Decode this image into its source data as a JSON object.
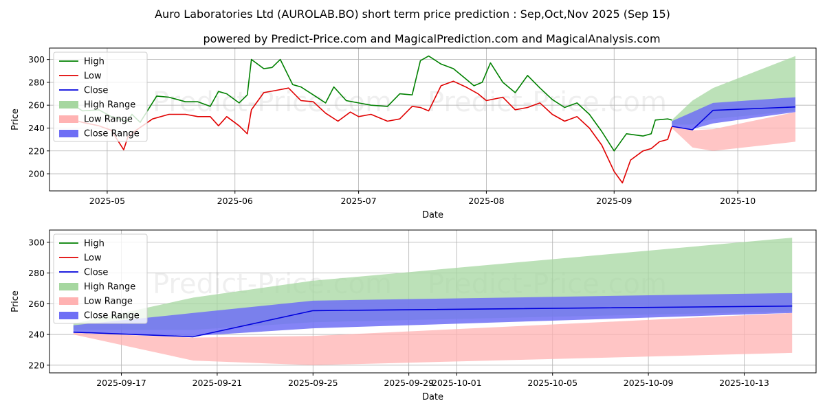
{
  "title_line1": "Auro Laboratories Ltd (AUROLAB.BO) short term price prediction : Sep,Oct,Nov 2025 (Sep 15)",
  "title_line2": "powered by Predict-Price.com and MagicalPrediction.com and MagicalAnalysis.com",
  "watermark": "Predict-Price.com",
  "colors": {
    "high": "#008000",
    "low": "#e00000",
    "close": "#0000dd",
    "high_range": "#a6d7a0",
    "low_range": "#ffb2b2",
    "close_range": "#6f6ff5"
  },
  "chart_data": [
    {
      "type": "line",
      "xlabel": "Date",
      "ylabel": "Price",
      "ylim": [
        185,
        310
      ],
      "yticks": [
        200,
        220,
        240,
        260,
        280,
        300
      ],
      "xticks": [
        "2025-05-01",
        "2025-06-01",
        "2025-07-01",
        "2025-08-01",
        "2025-09-01",
        "2025-10-01"
      ],
      "xtick_labels": [
        "2025-05",
        "2025-06",
        "2025-07",
        "2025-08",
        "2025-09",
        "2025-10"
      ],
      "xlim": [
        "2025-04-17",
        "2025-10-20"
      ],
      "grid": true,
      "legend": {
        "placement": "upper-left",
        "entries": [
          "High",
          "Low",
          "Close",
          "High Range",
          "Low Range",
          "Close Range"
        ]
      },
      "series": [
        {
          "name": "High",
          "x": [
            "2025-04-22",
            "2025-04-25",
            "2025-04-29",
            "2025-05-02",
            "2025-05-06",
            "2025-05-07",
            "2025-05-09",
            "2025-05-13",
            "2025-05-16",
            "2025-05-20",
            "2025-05-23",
            "2025-05-26",
            "2025-05-28",
            "2025-05-30",
            "2025-06-02",
            "2025-06-04",
            "2025-06-05",
            "2025-06-08",
            "2025-06-10",
            "2025-06-12",
            "2025-06-15",
            "2025-06-17",
            "2025-06-20",
            "2025-06-23",
            "2025-06-25",
            "2025-06-28",
            "2025-07-01",
            "2025-07-04",
            "2025-07-08",
            "2025-07-11",
            "2025-07-14",
            "2025-07-16",
            "2025-07-18",
            "2025-07-21",
            "2025-07-24",
            "2025-07-27",
            "2025-07-29",
            "2025-07-31",
            "2025-08-02",
            "2025-08-05",
            "2025-08-08",
            "2025-08-11",
            "2025-08-14",
            "2025-08-17",
            "2025-08-20",
            "2025-08-23",
            "2025-08-26",
            "2025-08-29",
            "2025-09-01",
            "2025-09-04",
            "2025-09-08",
            "2025-09-10",
            "2025-09-11",
            "2025-09-14",
            "2025-09-15"
          ],
          "values": [
            262,
            255,
            256,
            250,
            246,
            252,
            245,
            268,
            267,
            263,
            263,
            259,
            272,
            270,
            262,
            269,
            300,
            292,
            293,
            300,
            278,
            276,
            269,
            262,
            276,
            264,
            262,
            260,
            259,
            270,
            269,
            299,
            303,
            296,
            292,
            283,
            277,
            280,
            297,
            280,
            271,
            286,
            275,
            265,
            258,
            262,
            252,
            237,
            220,
            235,
            233,
            235,
            247,
            248,
            247
          ]
        },
        {
          "name": "Low",
          "x": [
            "2025-04-22",
            "2025-04-25",
            "2025-04-29",
            "2025-05-02",
            "2025-05-05",
            "2025-05-06",
            "2025-05-08",
            "2025-05-12",
            "2025-05-16",
            "2025-05-20",
            "2025-05-23",
            "2025-05-26",
            "2025-05-28",
            "2025-05-30",
            "2025-06-02",
            "2025-06-04",
            "2025-06-05",
            "2025-06-08",
            "2025-06-11",
            "2025-06-14",
            "2025-06-17",
            "2025-06-20",
            "2025-06-23",
            "2025-06-26",
            "2025-06-29",
            "2025-07-01",
            "2025-07-04",
            "2025-07-08",
            "2025-07-11",
            "2025-07-14",
            "2025-07-16",
            "2025-07-18",
            "2025-07-21",
            "2025-07-24",
            "2025-07-27",
            "2025-07-30",
            "2025-08-01",
            "2025-08-05",
            "2025-08-08",
            "2025-08-11",
            "2025-08-14",
            "2025-08-17",
            "2025-08-20",
            "2025-08-23",
            "2025-08-26",
            "2025-08-29",
            "2025-09-01",
            "2025-09-03",
            "2025-09-05",
            "2025-09-08",
            "2025-09-10",
            "2025-09-12",
            "2025-09-14",
            "2025-09-15"
          ],
          "values": [
            248,
            245,
            242,
            238,
            221,
            232,
            238,
            248,
            252,
            252,
            250,
            250,
            242,
            250,
            242,
            235,
            256,
            271,
            273,
            275,
            264,
            263,
            253,
            246,
            254,
            250,
            252,
            246,
            248,
            259,
            258,
            255,
            277,
            281,
            276,
            270,
            264,
            267,
            256,
            258,
            262,
            252,
            246,
            250,
            240,
            225,
            202,
            192,
            212,
            220,
            222,
            228,
            230,
            241
          ]
        },
        {
          "name": "Close",
          "x": [
            "2025-09-15",
            "2025-09-20",
            "2025-09-25",
            "2025-10-15"
          ],
          "values": [
            241.5,
            238.5,
            255.5,
            258.5
          ]
        },
        {
          "name": "High Range",
          "x": [
            "2025-09-15",
            "2025-09-20",
            "2025-09-25",
            "2025-10-15"
          ],
          "upper": [
            247,
            264,
            275,
            303
          ],
          "lower": [
            243,
            243,
            248,
            255
          ]
        },
        {
          "name": "Low Range",
          "x": [
            "2025-09-15",
            "2025-09-20",
            "2025-09-25",
            "2025-10-15"
          ],
          "upper": [
            241,
            238,
            239,
            254
          ],
          "lower": [
            240,
            223,
            220,
            228
          ]
        },
        {
          "name": "Close Range",
          "x": [
            "2025-09-15",
            "2025-09-20",
            "2025-09-25",
            "2025-10-15"
          ],
          "upper": [
            246,
            254,
            262,
            267
          ],
          "lower": [
            241,
            239,
            244,
            254
          ]
        }
      ]
    },
    {
      "type": "line",
      "xlabel": "Date",
      "ylabel": "Price",
      "ylim": [
        215,
        308
      ],
      "yticks": [
        220,
        240,
        260,
        280,
        300
      ],
      "xticks": [
        "2025-09-17",
        "2025-09-21",
        "2025-09-25",
        "2025-09-29",
        "2025-10-01",
        "2025-10-05",
        "2025-10-09",
        "2025-10-13"
      ],
      "xtick_labels": [
        "2025-09-17",
        "2025-09-21",
        "2025-09-25",
        "2025-09-29",
        "2025-10-01",
        "2025-10-05",
        "2025-10-09",
        "2025-10-13"
      ],
      "xlim": [
        "2025-09-14",
        "2025-10-16"
      ],
      "grid": true,
      "legend": {
        "placement": "upper-left",
        "entries": [
          "High",
          "Low",
          "Close",
          "High Range",
          "Low Range",
          "Close Range"
        ]
      },
      "series": [
        {
          "name": "Close",
          "x": [
            "2025-09-15",
            "2025-09-20",
            "2025-09-25",
            "2025-10-15"
          ],
          "values": [
            241.5,
            238.5,
            255.5,
            258.5
          ]
        },
        {
          "name": "High Range",
          "x": [
            "2025-09-15",
            "2025-09-20",
            "2025-09-25",
            "2025-10-15"
          ],
          "upper": [
            247,
            264,
            275,
            303
          ],
          "lower": [
            243,
            243,
            248,
            255
          ]
        },
        {
          "name": "Low Range",
          "x": [
            "2025-09-15",
            "2025-09-20",
            "2025-09-25",
            "2025-10-15"
          ],
          "upper": [
            241,
            238,
            239,
            254
          ],
          "lower": [
            240,
            223,
            220,
            228
          ]
        },
        {
          "name": "Close Range",
          "x": [
            "2025-09-15",
            "2025-09-20",
            "2025-09-25",
            "2025-10-15"
          ],
          "upper": [
            246,
            254,
            262,
            267
          ],
          "lower": [
            241,
            239,
            244,
            254
          ]
        }
      ]
    }
  ]
}
